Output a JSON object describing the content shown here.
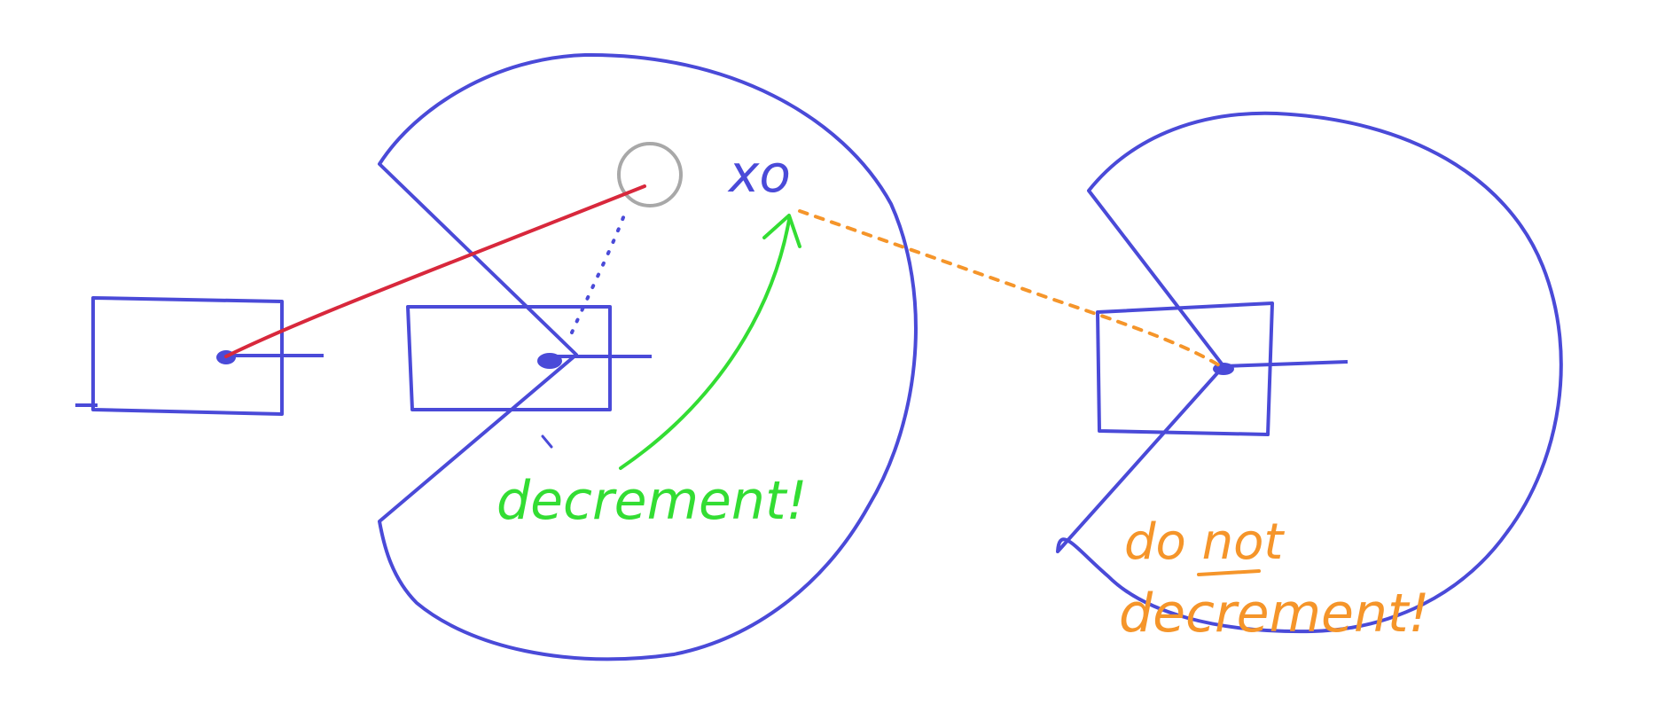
{
  "colors": {
    "background": "#ffffff",
    "ink": "#4a4ad8",
    "pointer": "#d8283c",
    "decrement": "#33dd33",
    "no_decrement": "#f5952a",
    "sentinel": "#a8a8a8"
  },
  "labels": {
    "xo": "xo",
    "decrement": "decrement!",
    "do_not": "do not",
    "not_word": "not",
    "decrement_2": "decrement!"
  }
}
